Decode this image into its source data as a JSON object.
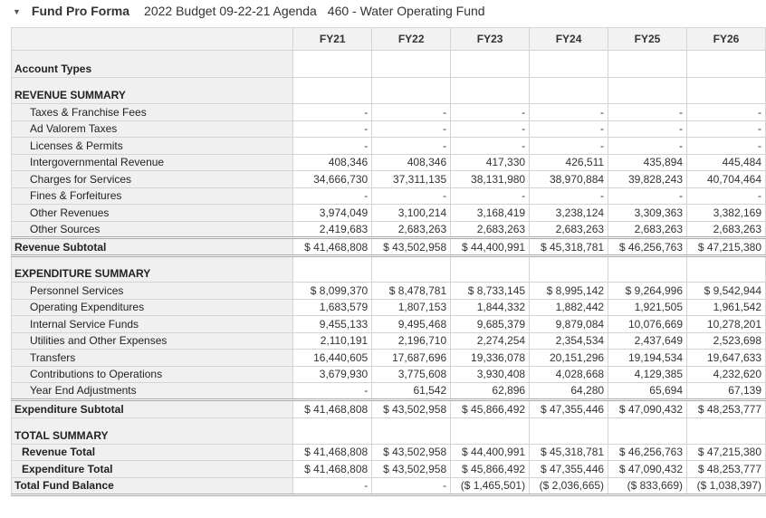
{
  "header": {
    "title": "Fund Pro Forma",
    "budget": "2022 Budget 09-22-21 Agenda",
    "fund": "460 - Water Operating Fund"
  },
  "columns": [
    "FY21",
    "FY22",
    "FY23",
    "FY24",
    "FY25",
    "FY26"
  ],
  "rows": [
    {
      "label": "Account Types",
      "type": "section",
      "values": [
        "",
        "",
        "",
        "",
        "",
        ""
      ]
    },
    {
      "label": "REVENUE SUMMARY",
      "type": "section",
      "values": [
        "",
        "",
        "",
        "",
        "",
        ""
      ]
    },
    {
      "label": "Taxes & Franchise Fees",
      "type": "item",
      "values": [
        "-",
        "-",
        "-",
        "-",
        "-",
        "-"
      ]
    },
    {
      "label": "Ad Valorem Taxes",
      "type": "item",
      "values": [
        "-",
        "-",
        "-",
        "-",
        "-",
        "-"
      ]
    },
    {
      "label": "Licenses & Permits",
      "type": "item",
      "values": [
        "-",
        "-",
        "-",
        "-",
        "-",
        "-"
      ]
    },
    {
      "label": "Intergovernmental Revenue",
      "type": "item",
      "values": [
        "408,346",
        "408,346",
        "417,330",
        "426,511",
        "435,894",
        "445,484"
      ]
    },
    {
      "label": "Charges for Services",
      "type": "item",
      "values": [
        "34,666,730",
        "37,311,135",
        "38,131,980",
        "38,970,884",
        "39,828,243",
        "40,704,464"
      ]
    },
    {
      "label": "Fines & Forfeitures",
      "type": "item",
      "values": [
        "-",
        "-",
        "-",
        "-",
        "-",
        "-"
      ]
    },
    {
      "label": "Other Revenues",
      "type": "item",
      "values": [
        "3,974,049",
        "3,100,214",
        "3,168,419",
        "3,238,124",
        "3,309,363",
        "3,382,169"
      ]
    },
    {
      "label": "Other Sources",
      "type": "item",
      "values": [
        "2,419,683",
        "2,683,263",
        "2,683,263",
        "2,683,263",
        "2,683,263",
        "2,683,263"
      ]
    },
    {
      "label": "Revenue Subtotal",
      "type": "subtotal",
      "values": [
        "$ 41,468,808",
        "$ 43,502,958",
        "$ 44,400,991",
        "$ 45,318,781",
        "$ 46,256,763",
        "$ 47,215,380"
      ]
    },
    {
      "label": "EXPENDITURE SUMMARY",
      "type": "section2",
      "values": [
        "",
        "",
        "",
        "",
        "",
        ""
      ]
    },
    {
      "label": "Personnel Services",
      "type": "item",
      "values": [
        "$ 8,099,370",
        "$ 8,478,781",
        "$ 8,733,145",
        "$ 8,995,142",
        "$ 9,264,996",
        "$ 9,542,944"
      ]
    },
    {
      "label": "Operating Expenditures",
      "type": "item",
      "values": [
        "1,683,579",
        "1,807,153",
        "1,844,332",
        "1,882,442",
        "1,921,505",
        "1,961,542"
      ]
    },
    {
      "label": "Internal Service Funds",
      "type": "item",
      "values": [
        "9,455,133",
        "9,495,468",
        "9,685,379",
        "9,879,084",
        "10,076,669",
        "10,278,201"
      ]
    },
    {
      "label": "Utilities and Other Expenses",
      "type": "item",
      "values": [
        "2,110,191",
        "2,196,710",
        "2,274,254",
        "2,354,534",
        "2,437,649",
        "2,523,698"
      ]
    },
    {
      "label": "Transfers",
      "type": "item",
      "values": [
        "16,440,605",
        "17,687,696",
        "19,336,078",
        "20,151,296",
        "19,194,534",
        "19,647,633"
      ]
    },
    {
      "label": "Contributions to Operations",
      "type": "item",
      "values": [
        "3,679,930",
        "3,775,608",
        "3,930,408",
        "4,028,668",
        "4,129,385",
        "4,232,620"
      ]
    },
    {
      "label": "Year End Adjustments",
      "type": "item",
      "values": [
        "-",
        "61,542",
        "62,896",
        "64,280",
        "65,694",
        "67,139"
      ]
    },
    {
      "label": "Expenditure Subtotal",
      "type": "subtotal",
      "values": [
        "$ 41,468,808",
        "$ 43,502,958",
        "$ 45,866,492",
        "$ 47,355,446",
        "$ 47,090,432",
        "$ 48,253,777"
      ]
    },
    {
      "label": "TOTAL SUMMARY",
      "type": "section",
      "values": [
        "",
        "",
        "",
        "",
        "",
        ""
      ]
    },
    {
      "label": "Revenue Total",
      "type": "total-item",
      "values": [
        "$ 41,468,808",
        "$ 43,502,958",
        "$ 44,400,991",
        "$ 45,318,781",
        "$ 46,256,763",
        "$ 47,215,380"
      ]
    },
    {
      "label": "Expenditure Total",
      "type": "total-item",
      "values": [
        "$ 41,468,808",
        "$ 43,502,958",
        "$ 45,866,492",
        "$ 47,355,446",
        "$ 47,090,432",
        "$ 48,253,777"
      ]
    },
    {
      "label": "Total Fund Balance",
      "type": "grand",
      "values": [
        "-",
        "-",
        "($ 1,465,501)",
        "($ 2,036,665)",
        "($ 833,669)",
        "($ 1,038,397)"
      ]
    }
  ]
}
